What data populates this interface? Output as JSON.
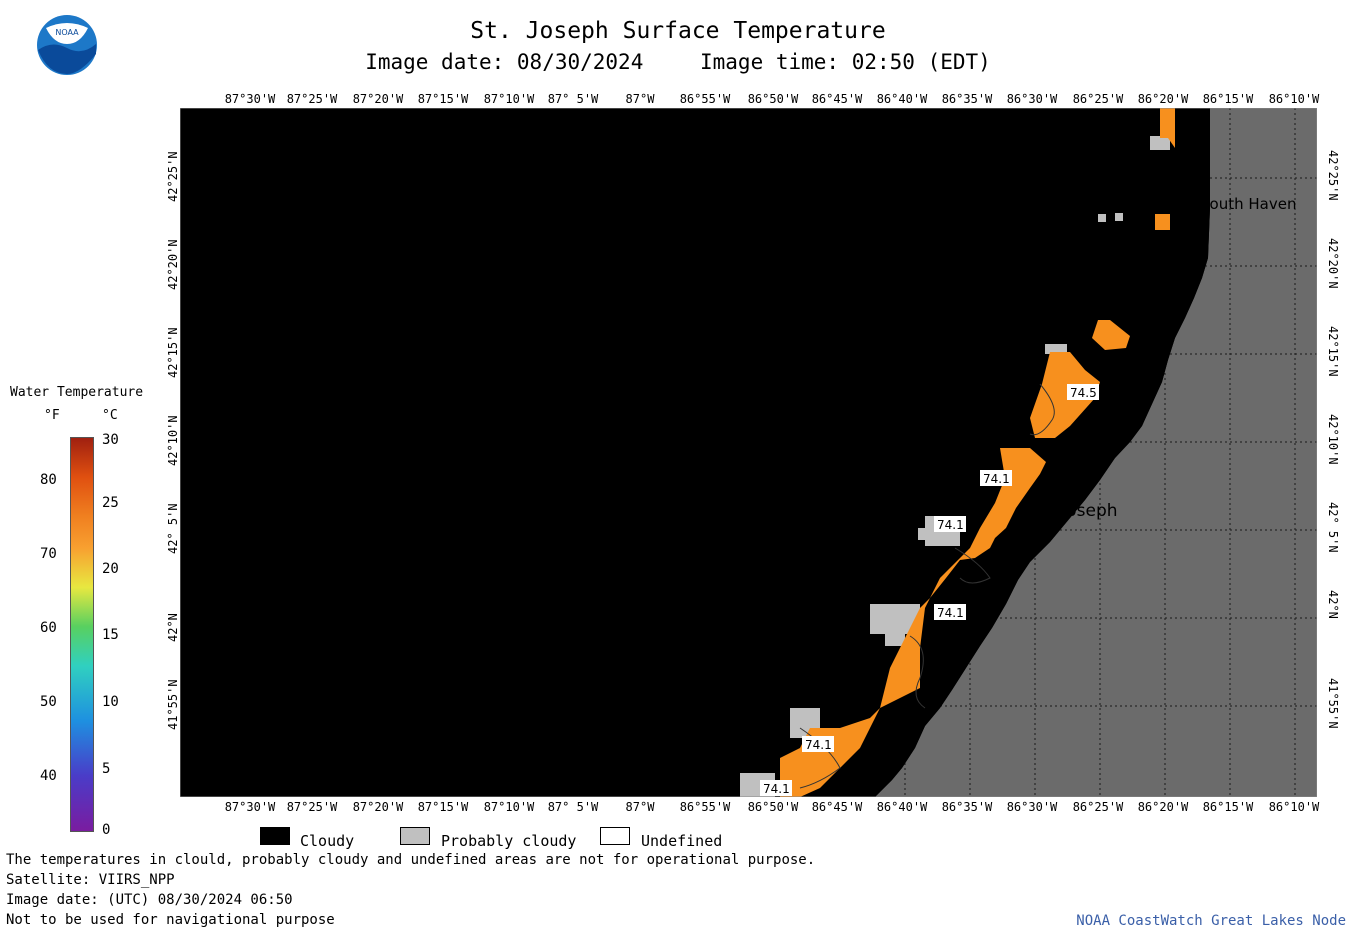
{
  "header": {
    "title": "St. Joseph Surface Temperature",
    "image_date": "Image date: 08/30/2024",
    "image_time": "Image time: 02:50 (EDT)"
  },
  "logo": {
    "text": "NOAA"
  },
  "map": {
    "longitude_labels": [
      "87°30'W",
      "87°25'W",
      "87°20'W",
      "87°15'W",
      "87°10'W",
      "87° 5'W",
      "87°W",
      "86°55'W",
      "86°50'W",
      "86°45'W",
      "86°40'W",
      "86°35'W",
      "86°30'W",
      "86°25'W",
      "86°20'W",
      "86°15'W",
      "86°10'W"
    ],
    "latitude_labels": [
      "42°25'N",
      "42°20'N",
      "42°15'N",
      "42°10'N",
      "42° 5'N",
      "42°N",
      "41°55'N"
    ],
    "cities": [
      {
        "name": "South Haven"
      },
      {
        "name": "St. Joseph"
      }
    ],
    "contour_labels": [
      "74.5",
      "74.1",
      "74.1",
      "74.1",
      "74.1",
      "74.1"
    ],
    "colors": {
      "cloudy": "#000000",
      "land": "#6b6b6b",
      "water_temp": "#f7901e",
      "probably_cloudy": "#c0c0c0"
    }
  },
  "legend": {
    "title": "Water Temperature",
    "unit_f": "°F",
    "unit_c": "°C",
    "f_ticks": [
      "80",
      "70",
      "60",
      "50",
      "40"
    ],
    "c_ticks": [
      "30",
      "25",
      "20",
      "15",
      "10",
      "5",
      "0"
    ]
  },
  "key": {
    "cloudy": "Cloudy",
    "probably_cloudy": "Probably cloudy",
    "undefined": "Undefined"
  },
  "notes": {
    "line1": "The temperatures in clould, probably cloudy and undefined areas are not for operational purpose.",
    "satellite": "Satellite: VIIRS_NPP",
    "utc_date": "Image date: (UTC) 08/30/2024  06:50",
    "nav": "Not to be used for navigational purpose",
    "credit": "NOAA CoastWatch Great Lakes Node"
  }
}
